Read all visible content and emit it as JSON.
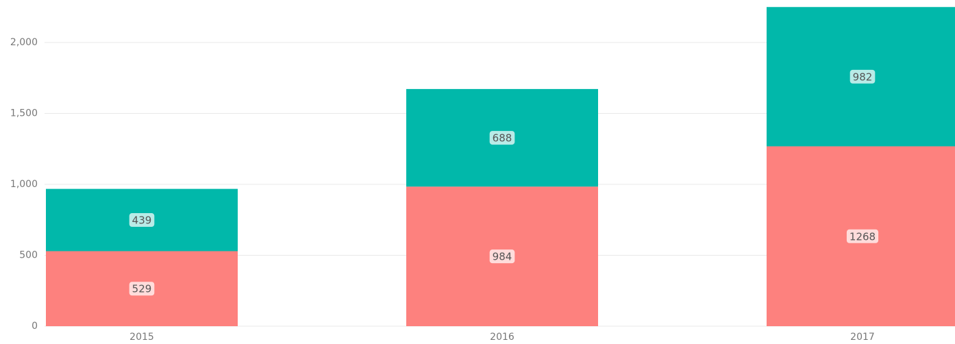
{
  "chart_data": {
    "type": "stacked_bar",
    "categories": [
      "2015",
      "2016",
      "2017"
    ],
    "series": [
      {
        "color": "#fd817e",
        "values": [
          529,
          984,
          1268
        ]
      },
      {
        "color": "#01b8aa",
        "values": [
          439,
          688,
          982
        ]
      }
    ],
    "ylim": [
      0,
      2250
    ],
    "yticks": [
      0,
      500,
      {
        "value": 1000,
        "label": "1,000"
      },
      {
        "value": 1500,
        "label": "1,500"
      },
      {
        "value": 2000,
        "label": "2,000"
      }
    ],
    "grid": true
  }
}
